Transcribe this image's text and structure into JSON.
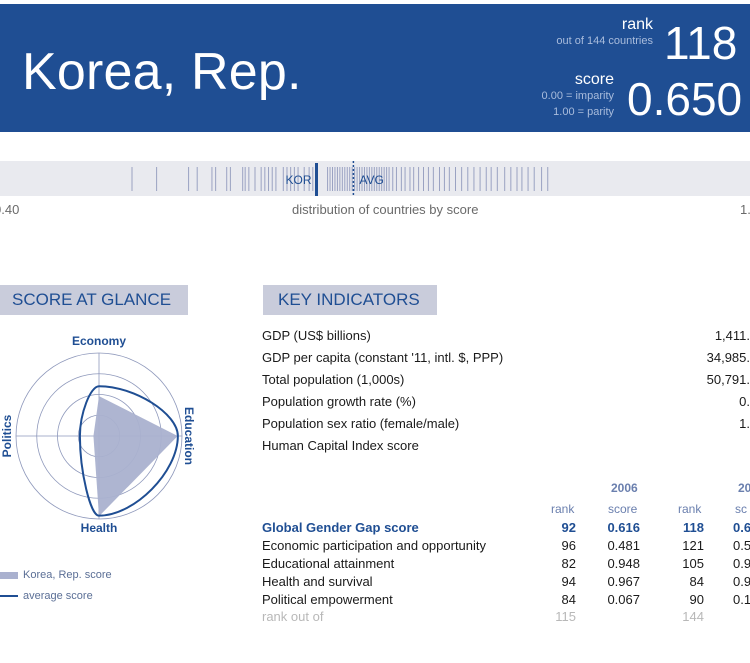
{
  "header": {
    "country": "Korea, Rep.",
    "rank_label": "rank",
    "rank_sub": "out of 144 countries",
    "rank_value": "118",
    "score_label": "score",
    "score_sub1": "0.00 = imparity",
    "score_sub2": "1.00 = parity",
    "score_value": "0.650"
  },
  "distribution": {
    "min_label": "0.40",
    "max_label": "1.",
    "caption": "distribution of countries by score",
    "kor_label": "KOR",
    "avg_label": "AVG",
    "range": [
      0.4,
      1.0
    ],
    "kor_score": 0.65,
    "avg_score": 0.68,
    "country_scores": [
      0.5,
      0.52,
      0.546,
      0.553,
      0.565,
      0.568,
      0.577,
      0.58,
      0.59,
      0.592,
      0.595,
      0.6,
      0.605,
      0.608,
      0.611,
      0.614,
      0.617,
      0.623,
      0.626,
      0.629,
      0.632,
      0.635,
      0.64,
      0.644,
      0.647,
      0.659,
      0.661,
      0.663,
      0.665,
      0.667,
      0.669,
      0.671,
      0.673,
      0.675,
      0.677,
      0.679,
      0.681,
      0.683,
      0.685,
      0.687,
      0.689,
      0.691,
      0.693,
      0.695,
      0.697,
      0.699,
      0.701,
      0.703,
      0.705,
      0.707,
      0.709,
      0.712,
      0.715,
      0.719,
      0.722,
      0.726,
      0.729,
      0.733,
      0.737,
      0.741,
      0.745,
      0.75,
      0.754,
      0.758,
      0.763,
      0.768,
      0.773,
      0.778,
      0.783,
      0.788,
      0.792,
      0.797,
      0.803,
      0.808,
      0.813,
      0.817,
      0.822,
      0.827,
      0.833,
      0.838
    ]
  },
  "glance": {
    "title": "SCORE AT GLANCE",
    "axes": {
      "economy": "Economy",
      "education": "Education",
      "health": "Health",
      "politics": "Politics"
    },
    "legend_country": "Korea, Rep. score",
    "legend_average": "average score",
    "fill_color": "#aab1cf",
    "line_color": "#1f4e93",
    "country_scores": {
      "economy": 0.481,
      "education": 0.948,
      "health": 0.967,
      "politics": 0.067
    },
    "average_scores": {
      "economy": 0.6,
      "education": 0.95,
      "health": 0.96,
      "politics": 0.23
    }
  },
  "indicators": {
    "title": "KEY INDICATORS",
    "rows": [
      {
        "label": "GDP (US$ billions)",
        "value": "1,411."
      },
      {
        "label": "GDP per capita (constant '11, intl. $, PPP)",
        "value": "34,985."
      },
      {
        "label": "Total population (1,000s)",
        "value": "50,791."
      },
      {
        "label": "Population growth rate (%)",
        "value": "0."
      },
      {
        "label": "Population sex ratio (female/male)",
        "value": "1."
      },
      {
        "label": "Human Capital Index score",
        "value": ""
      }
    ]
  },
  "gender_gap": {
    "year_2006": "2006",
    "year_2016": "20",
    "col_rank": "rank",
    "col_score": "score",
    "col_score_cut": "sc",
    "rows": [
      {
        "label": "Global Gender Gap score",
        "rank06": "92",
        "score06": "0.616",
        "rank16": "118",
        "score16": "0.6"
      },
      {
        "label": "Economic participation and opportunity",
        "rank06": "96",
        "score06": "0.481",
        "rank16": "121",
        "score16": "0.5"
      },
      {
        "label": "Educational attainment",
        "rank06": "82",
        "score06": "0.948",
        "rank16": "105",
        "score16": "0.9"
      },
      {
        "label": "Health and survival",
        "rank06": "94",
        "score06": "0.967",
        "rank16": "84",
        "score16": "0.9"
      },
      {
        "label": "Political empowerment",
        "rank06": "84",
        "score06": "0.067",
        "rank16": "90",
        "score16": "0.1"
      }
    ],
    "footer_label": "rank out of",
    "footer_06": "115",
    "footer_16": "144"
  }
}
